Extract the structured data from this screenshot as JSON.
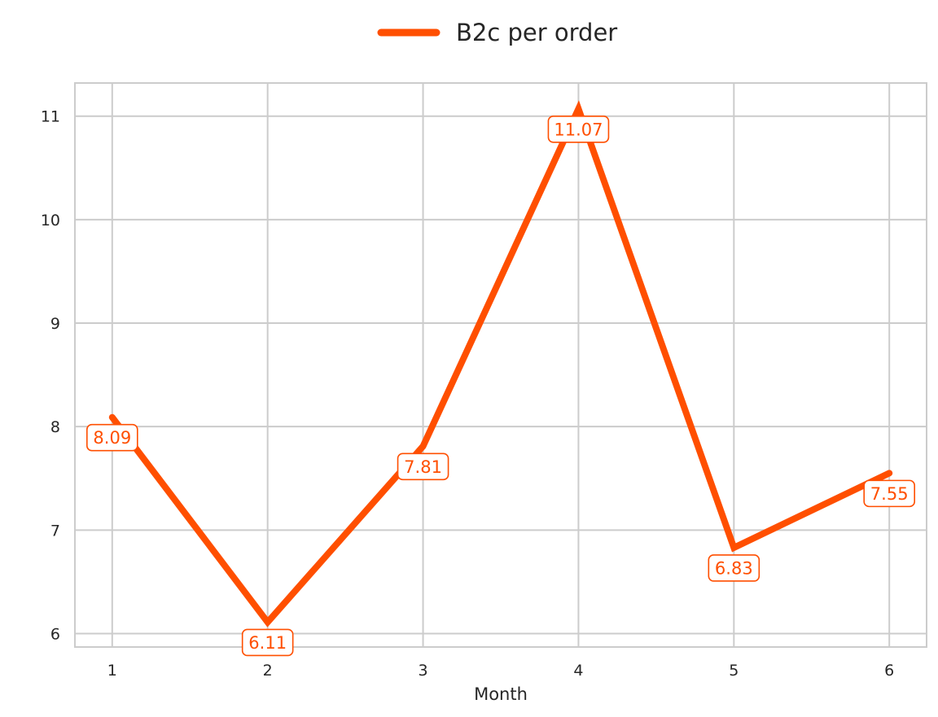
{
  "chart_data": {
    "type": "line",
    "title": "",
    "xlabel": "Month",
    "ylabel": "",
    "x": [
      1,
      2,
      3,
      4,
      5,
      6
    ],
    "xticks": [
      "1",
      "2",
      "3",
      "4",
      "5",
      "6"
    ],
    "yticks": [
      "6",
      "7",
      "8",
      "9",
      "10",
      "11"
    ],
    "ylim": [
      5.87,
      11.32
    ],
    "xlim": [
      0.76,
      6.24
    ],
    "grid": true,
    "legend_position": "top-center",
    "series": [
      {
        "name": "B2c per order",
        "color": "#ff4f00",
        "values": [
          8.09,
          6.11,
          7.81,
          11.07,
          6.83,
          7.55
        ],
        "labels": [
          "8.09",
          "6.11",
          "7.81",
          "11.07",
          "6.83",
          "7.55"
        ]
      }
    ]
  }
}
